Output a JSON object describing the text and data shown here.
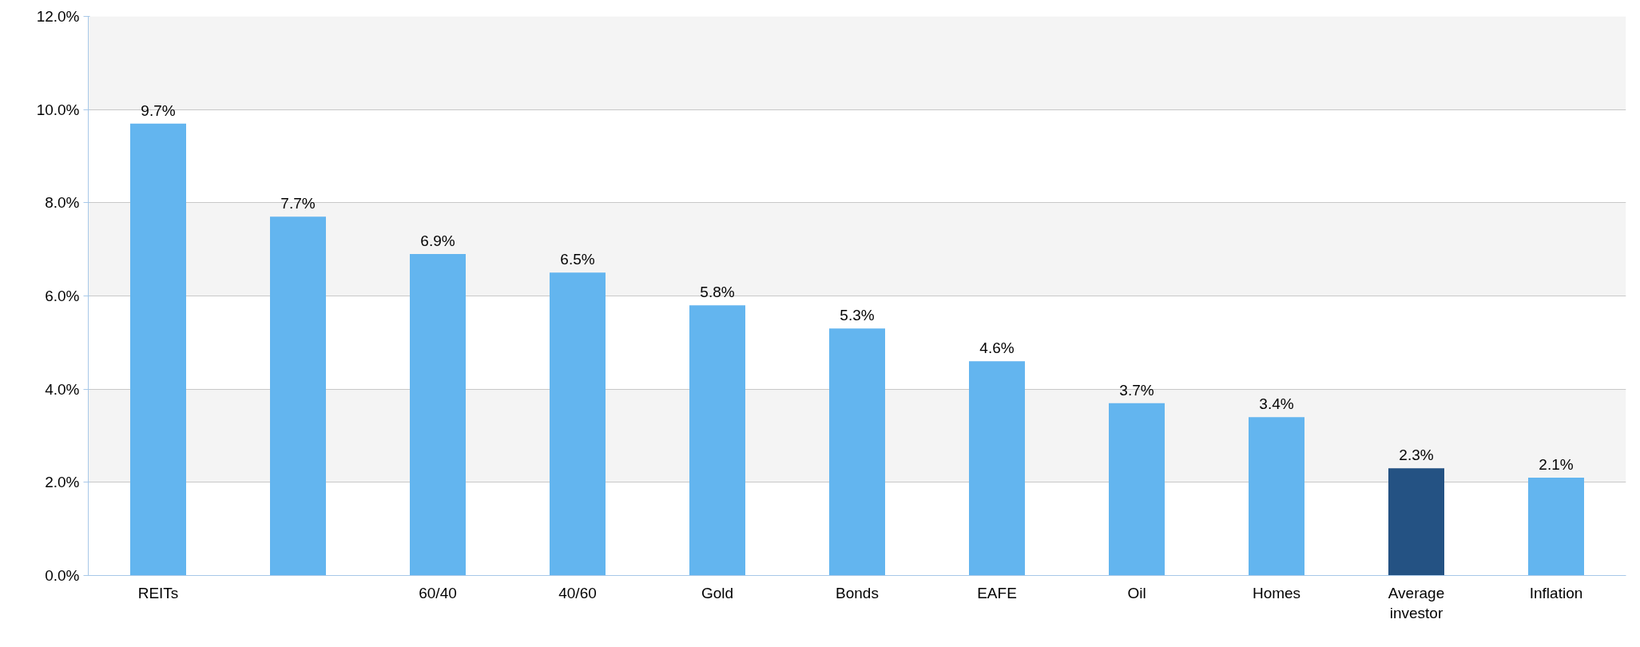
{
  "chart_data": {
    "type": "bar",
    "categories": [
      "REITs",
      null,
      "60/40",
      "40/60",
      "Gold",
      "Bonds",
      "EAFE",
      "Oil",
      "Homes",
      "Average\ninvestor",
      "Inflation"
    ],
    "values": [
      9.7,
      7.7,
      6.9,
      6.5,
      5.8,
      5.3,
      4.6,
      3.7,
      3.4,
      2.3,
      2.1
    ],
    "colors": [
      "#63b5ef",
      "#63b5ef",
      "#63b5ef",
      "#63b5ef",
      "#63b5ef",
      "#63b5ef",
      "#63b5ef",
      "#63b5ef",
      "#63b5ef",
      "#245283",
      "#63b5ef"
    ],
    "value_labels": [
      "9.7%",
      "7.7%",
      "6.9%",
      "6.5%",
      "5.8%",
      "5.3%",
      "4.6%",
      "3.7%",
      "3.4%",
      "2.3%",
      "2.1%"
    ],
    "ylim": [
      0,
      12
    ],
    "yticks": [
      {
        "value": 0,
        "label": "0.0%"
      },
      {
        "value": 2,
        "label": "2.0%"
      },
      {
        "value": 4,
        "label": "4.0%"
      },
      {
        "value": 6,
        "label": "6.0%"
      },
      {
        "value": 8,
        "label": "8.0%"
      },
      {
        "value": 10,
        "label": "10.0%"
      },
      {
        "value": 12,
        "label": "12.0%"
      }
    ],
    "grid": "y"
  }
}
